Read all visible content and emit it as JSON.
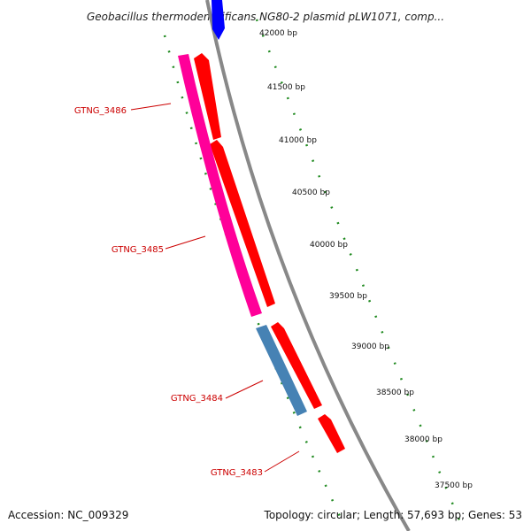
{
  "title": "Geobacillus thermodenitrificans NG80-2 plasmid pLW1071, comp...",
  "footer": {
    "accession": "Accession: NC_009329",
    "summary": "Topology: circular; Length: 57,693 bp; Genes: 53"
  },
  "ticks": [
    "42000 bp",
    "41500 bp",
    "41000 bp",
    "40500 bp",
    "40000 bp",
    "39500 bp",
    "39000 bp",
    "38500 bp",
    "38000 bp",
    "37500 bp"
  ],
  "genes": [
    {
      "label": "GTNG_3486",
      "color": "#ff0099",
      "strand": "cog"
    },
    {
      "label": "GTNG_3485",
      "color": "#ff0099",
      "strand": "cog"
    },
    {
      "label": "GTNG_3484",
      "color": "#4682b4",
      "strand": "cog"
    },
    {
      "label": "GTNG_3483",
      "color": "#ff0000",
      "strand": "cds"
    }
  ],
  "colors": {
    "backbone": "#888888",
    "cds_forward": "#ff0000",
    "cds_reverse": "#0000ff",
    "cog_pink": "#ff0099",
    "cog_blue": "#4682b4",
    "tick": "#228b22",
    "label": "#cc0000"
  }
}
